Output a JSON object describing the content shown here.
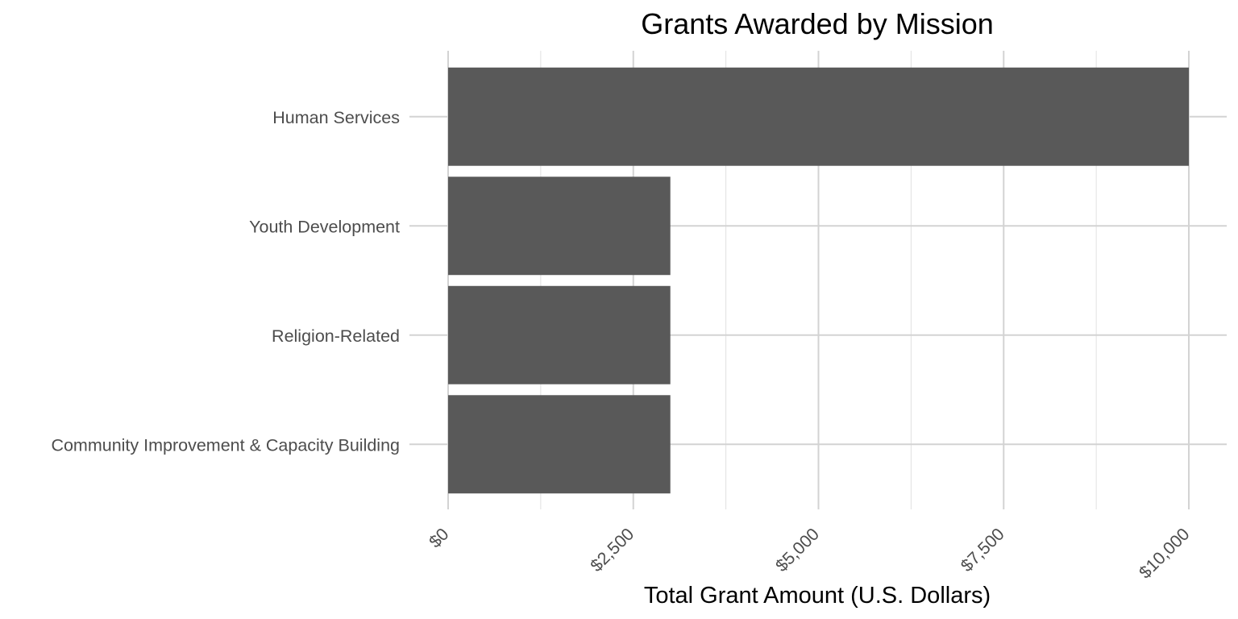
{
  "chart_data": {
    "type": "bar",
    "orientation": "horizontal",
    "title": "Grants Awarded by Mission",
    "xlabel": "Total Grant Amount (U.S. Dollars)",
    "ylabel": "",
    "categories": [
      "Human Services",
      "Youth Development",
      "Religion-Related",
      "Community Improvement & Capacity Building"
    ],
    "values": [
      10000,
      3000,
      3000,
      3000
    ],
    "xlim": [
      0,
      10500
    ],
    "x_ticks": [
      0,
      2500,
      5000,
      7500,
      10000
    ],
    "x_tick_labels": [
      "$0",
      "$2,500",
      "$5,000",
      "$7,500",
      "$10,000"
    ],
    "bar_color": "#595959",
    "grid": true,
    "legend": "none"
  }
}
